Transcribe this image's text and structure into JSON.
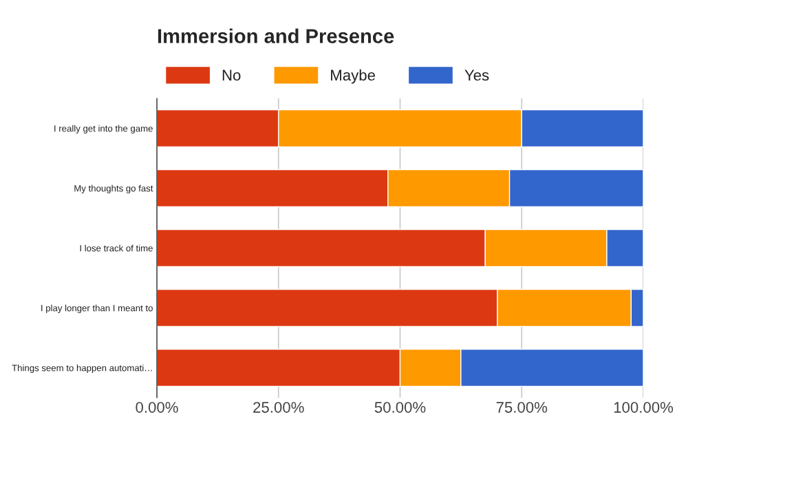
{
  "chart_data": {
    "type": "bar",
    "title": "Immersion and Presence",
    "orientation": "horizontal",
    "stacked": true,
    "categories": [
      "I really get into the game",
      "My thoughts go fast",
      "I lose track of time",
      "I play longer than I meant to",
      "Things seem to happen automati…"
    ],
    "series": [
      {
        "name": "No",
        "color": "#dc3912",
        "values": [
          25,
          47.5,
          67.5,
          70,
          50
        ]
      },
      {
        "name": "Maybe",
        "color": "#ff9900",
        "values": [
          50,
          25,
          25,
          27.5,
          12.5
        ]
      },
      {
        "name": "Yes",
        "color": "#3366cc",
        "values": [
          25,
          27.5,
          7.5,
          2.5,
          37.5
        ]
      }
    ],
    "xlim": [
      0,
      100
    ],
    "xticks": [
      {
        "value": 0,
        "label": "0.00%"
      },
      {
        "value": 25,
        "label": "25.00%"
      },
      {
        "value": 50,
        "label": "50.00%"
      },
      {
        "value": 75,
        "label": "75.00%"
      },
      {
        "value": 100,
        "label": "100.00%"
      }
    ],
    "grid": "x",
    "legend": "top"
  }
}
